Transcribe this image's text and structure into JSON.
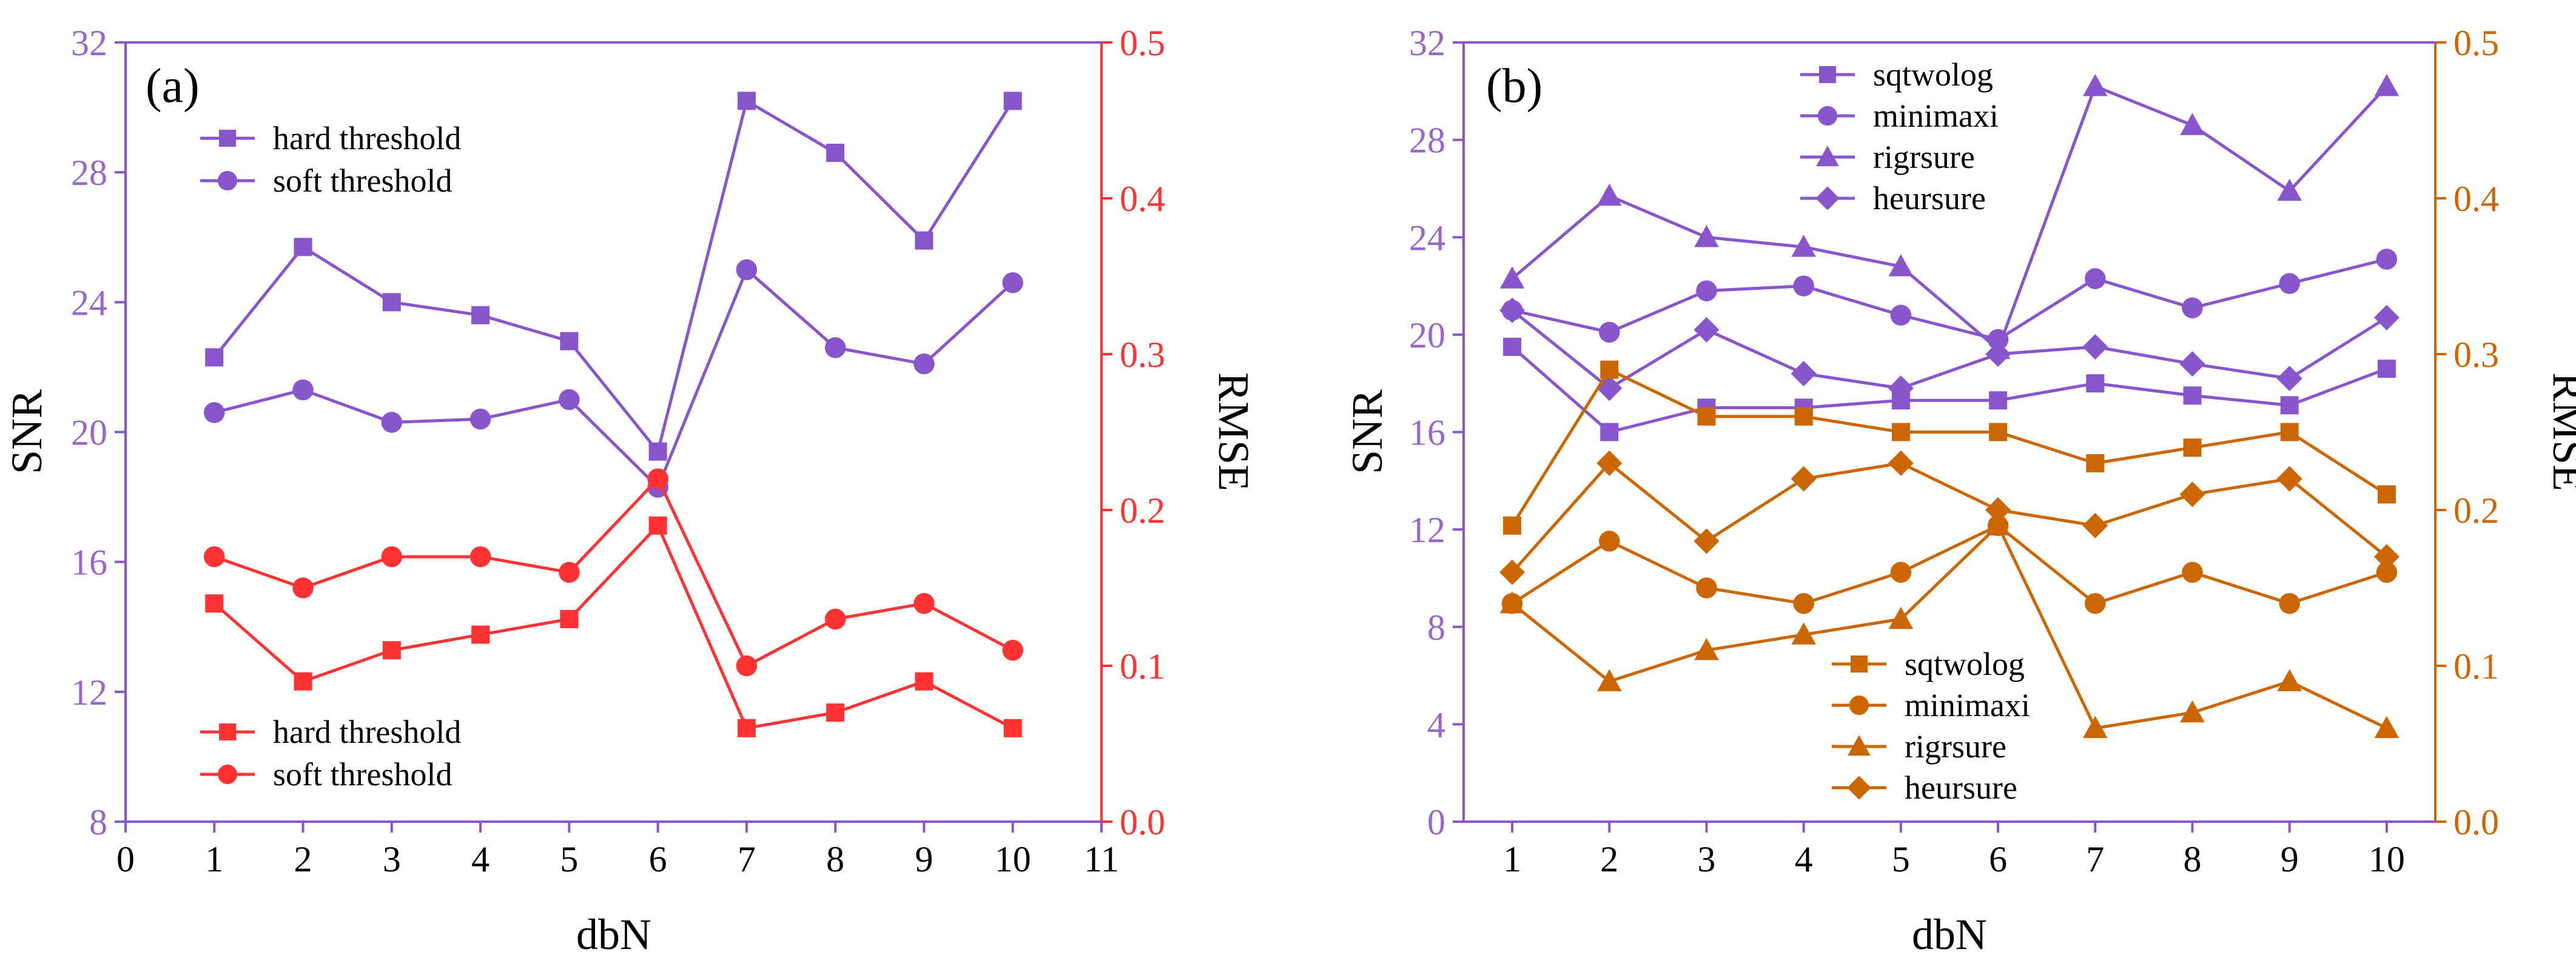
{
  "chart_data": [
    {
      "type": "line",
      "panel_label": "(a)",
      "xlabel": "dbN",
      "ylabel_left": "SNR",
      "ylabel_right": "RMSE",
      "xlim": [
        0,
        11
      ],
      "ylim_left": [
        8,
        32
      ],
      "ylim_right": [
        0.0,
        0.5
      ],
      "x_ticks": [
        "0",
        "1",
        "2",
        "3",
        "4",
        "5",
        "6",
        "7",
        "8",
        "9",
        "10",
        "11"
      ],
      "y_left_ticks": [
        "8",
        "12",
        "16",
        "20",
        "24",
        "28",
        "32"
      ],
      "y_right_ticks": [
        "0.0",
        "0.1",
        "0.2",
        "0.3",
        "0.4",
        "0.5"
      ],
      "left_axis_color": "#9966cc",
      "right_axis_color": "#ff3333",
      "x": [
        1,
        2,
        3,
        4,
        5,
        6,
        7,
        8,
        9,
        10
      ],
      "series": [
        {
          "name": "hard threshold",
          "axis": "left",
          "marker": "square",
          "color": "#8855cc",
          "values": [
            22.3,
            25.7,
            24.0,
            23.6,
            22.8,
            19.4,
            30.2,
            28.6,
            25.9,
            30.2
          ]
        },
        {
          "name": "soft threshold",
          "axis": "left",
          "marker": "circle",
          "color": "#8855cc",
          "values": [
            20.6,
            21.3,
            20.3,
            20.4,
            21.0,
            18.3,
            25.0,
            22.6,
            22.1,
            24.6
          ]
        },
        {
          "name": "hard threshold",
          "axis": "right",
          "marker": "square",
          "color": "#ff3333",
          "values": [
            0.14,
            0.09,
            0.11,
            0.12,
            0.13,
            0.19,
            0.06,
            0.07,
            0.09,
            0.06
          ]
        },
        {
          "name": "soft threshold",
          "axis": "right",
          "marker": "circle",
          "color": "#ff3333",
          "values": [
            0.17,
            0.15,
            0.17,
            0.17,
            0.16,
            0.22,
            0.1,
            0.13,
            0.14,
            0.11
          ]
        }
      ],
      "legend_left": {
        "position": "top-left",
        "entries": [
          "hard threshold",
          "soft threshold"
        ]
      },
      "legend_right": {
        "position": "bottom-left",
        "entries": [
          "hard threshold",
          "soft threshold"
        ]
      }
    },
    {
      "type": "line",
      "panel_label": "(b)",
      "xlabel": "dbN",
      "ylabel_left": "SNR",
      "ylabel_right": "RMSE",
      "xlim": [
        0.5,
        10.5
      ],
      "ylim_left": [
        0,
        32
      ],
      "ylim_right": [
        0.0,
        0.5
      ],
      "x_ticks": [
        "1",
        "2",
        "3",
        "4",
        "5",
        "6",
        "7",
        "8",
        "9",
        "10"
      ],
      "y_left_ticks": [
        "0",
        "4",
        "8",
        "12",
        "16",
        "20",
        "24",
        "28",
        "32"
      ],
      "y_right_ticks": [
        "0.0",
        "0.1",
        "0.2",
        "0.3",
        "0.4",
        "0.5"
      ],
      "left_axis_color": "#9966cc",
      "right_axis_color": "#cc6600",
      "x": [
        1,
        2,
        3,
        4,
        5,
        6,
        7,
        8,
        9,
        10
      ],
      "series": [
        {
          "name": "sqtwolog",
          "axis": "left",
          "marker": "square",
          "color": "#8855cc",
          "values": [
            19.5,
            16.0,
            17.0,
            17.0,
            17.3,
            17.3,
            18.0,
            17.5,
            17.1,
            18.6
          ]
        },
        {
          "name": "minimaxi",
          "axis": "left",
          "marker": "circle",
          "color": "#8855cc",
          "values": [
            21.0,
            20.1,
            21.8,
            22.0,
            20.8,
            19.8,
            22.3,
            21.1,
            22.1,
            23.1
          ]
        },
        {
          "name": "rigrsure",
          "axis": "left",
          "marker": "triangle",
          "color": "#8855cc",
          "values": [
            22.3,
            25.7,
            24.0,
            23.6,
            22.8,
            19.4,
            30.2,
            28.6,
            25.9,
            30.2
          ]
        },
        {
          "name": "heursure",
          "axis": "left",
          "marker": "diamond",
          "color": "#8855cc",
          "values": [
            21.0,
            17.8,
            20.2,
            18.4,
            17.8,
            19.2,
            19.5,
            18.8,
            18.2,
            20.7
          ]
        },
        {
          "name": "sqtwolog",
          "axis": "right",
          "marker": "square",
          "color": "#cc6600",
          "values": [
            0.19,
            0.29,
            0.26,
            0.26,
            0.25,
            0.25,
            0.23,
            0.24,
            0.25,
            0.21
          ]
        },
        {
          "name": "minimaxi",
          "axis": "right",
          "marker": "circle",
          "color": "#cc6600",
          "values": [
            0.14,
            0.18,
            0.15,
            0.14,
            0.16,
            0.19,
            0.14,
            0.16,
            0.14,
            0.16
          ]
        },
        {
          "name": "rigrsure",
          "axis": "right",
          "marker": "triangle",
          "color": "#cc6600",
          "values": [
            0.14,
            0.09,
            0.11,
            0.12,
            0.13,
            0.19,
            0.06,
            0.07,
            0.09,
            0.06
          ]
        },
        {
          "name": "heursure",
          "axis": "right",
          "marker": "diamond",
          "color": "#cc6600",
          "values": [
            0.16,
            0.23,
            0.18,
            0.22,
            0.23,
            0.2,
            0.19,
            0.21,
            0.22,
            0.17
          ]
        }
      ],
      "legend_left": {
        "position": "top-center",
        "entries": [
          "sqtwolog",
          "minimaxi",
          "rigrsure",
          "heursure"
        ]
      },
      "legend_right": {
        "position": "bottom-center",
        "entries": [
          "sqtwolog",
          "minimaxi",
          "rigrsure",
          "heursure"
        ]
      }
    }
  ]
}
